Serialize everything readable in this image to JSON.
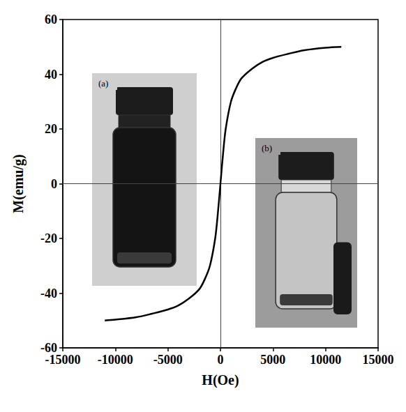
{
  "chart_data": {
    "type": "line",
    "x_label": "H(Oe)",
    "y_label": "M(emu/g)",
    "x": [
      -11000,
      -10000,
      -8000,
      -6500,
      -5000,
      -4000,
      -3000,
      -2000,
      -1500,
      -1000,
      -500,
      -250,
      0,
      250,
      500,
      1000,
      1500,
      2000,
      3000,
      4000,
      5000,
      6500,
      8000,
      10000,
      11500
    ],
    "values": [
      -50,
      -49.7,
      -48.8,
      -47.5,
      -46,
      -44.5,
      -42,
      -38.5,
      -35,
      -30,
      -20,
      -11,
      0,
      11,
      20,
      30,
      35,
      38.5,
      42,
      44.5,
      46,
      47.5,
      48.8,
      49.7,
      50
    ],
    "color": "#000000",
    "xlim": [
      -15000,
      15000
    ],
    "xticks": [
      -15000,
      -10000,
      -5000,
      0,
      5000,
      10000,
      15000
    ],
    "ylim": [
      -60,
      60
    ],
    "yticks": [
      -60,
      -40,
      -20,
      0,
      20,
      40,
      60
    ],
    "grid": false,
    "annotations": [
      "(a)",
      "(b)"
    ]
  }
}
